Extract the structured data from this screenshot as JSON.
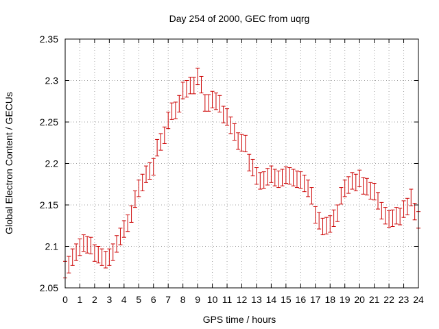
{
  "chart_data": {
    "type": "scatter",
    "title": "Day 254 of 2000, GEC from uqrg",
    "xlabel": "GPS time / hours",
    "ylabel": "Global Electron Content / GECUs",
    "xlim": [
      0,
      24
    ],
    "ylim": [
      2.05,
      2.35
    ],
    "xticks": [
      "0",
      "1",
      "2",
      "3",
      "4",
      "5",
      "6",
      "7",
      "8",
      "9",
      "10",
      "11",
      "12",
      "13",
      "14",
      "15",
      "16",
      "17",
      "18",
      "19",
      "20",
      "21",
      "22",
      "23",
      "24"
    ],
    "yticks": [
      "2.05",
      "2.1",
      "2.15",
      "2.2",
      "2.25",
      "2.3",
      "2.35"
    ],
    "grid": true,
    "error_bar_halfwidth": 0.01,
    "series_color": "#cc0000",
    "series": [
      {
        "x": [
          0.0,
          0.25,
          0.5,
          0.75,
          1.0,
          1.25,
          1.5,
          1.75,
          2.0,
          2.25,
          2.5,
          2.75,
          3.0,
          3.25,
          3.5,
          3.75,
          4.0,
          4.25,
          4.5,
          4.75,
          5.0,
          5.25,
          5.5,
          5.75,
          6.0,
          6.25,
          6.5,
          6.75,
          7.0,
          7.25,
          7.5,
          7.75,
          8.0,
          8.25,
          8.5,
          8.75,
          9.0,
          9.25,
          9.5,
          9.75,
          10.0,
          10.25,
          10.5,
          10.75,
          11.0,
          11.25,
          11.5,
          11.75,
          12.0,
          12.25,
          12.5,
          12.75,
          13.0,
          13.25,
          13.5,
          13.75,
          14.0,
          14.25,
          14.5,
          14.75,
          15.0,
          15.25,
          15.5,
          15.75,
          16.0,
          16.25,
          16.5,
          16.75,
          17.0,
          17.25,
          17.5,
          17.75,
          18.0,
          18.25,
          18.5,
          18.75,
          19.0,
          19.25,
          19.5,
          19.75,
          20.0,
          20.25,
          20.5,
          20.75,
          21.0,
          21.25,
          21.5,
          21.75,
          22.0,
          22.25,
          22.5,
          22.75,
          23.0,
          23.25,
          23.5,
          23.75,
          24.0
        ],
        "y": [
          2.072,
          2.078,
          2.087,
          2.093,
          2.099,
          2.104,
          2.102,
          2.101,
          2.092,
          2.09,
          2.087,
          2.084,
          2.087,
          2.093,
          2.103,
          2.112,
          2.121,
          2.128,
          2.139,
          2.157,
          2.17,
          2.177,
          2.187,
          2.191,
          2.196,
          2.219,
          2.226,
          2.234,
          2.252,
          2.263,
          2.264,
          2.272,
          2.288,
          2.29,
          2.294,
          2.294,
          2.305,
          2.295,
          2.273,
          2.273,
          2.277,
          2.275,
          2.272,
          2.259,
          2.256,
          2.246,
          2.238,
          2.227,
          2.225,
          2.224,
          2.201,
          2.195,
          2.185,
          2.179,
          2.18,
          2.184,
          2.187,
          2.183,
          2.181,
          2.183,
          2.186,
          2.185,
          2.183,
          2.181,
          2.18,
          2.176,
          2.17,
          2.161,
          2.138,
          2.131,
          2.124,
          2.125,
          2.127,
          2.134,
          2.14,
          2.161,
          2.17,
          2.174,
          2.179,
          2.177,
          2.182,
          2.173,
          2.172,
          2.167,
          2.166,
          2.155,
          2.143,
          2.137,
          2.133,
          2.134,
          2.137,
          2.136,
          2.145,
          2.148,
          2.159,
          2.142,
          2.132
        ]
      }
    ]
  }
}
